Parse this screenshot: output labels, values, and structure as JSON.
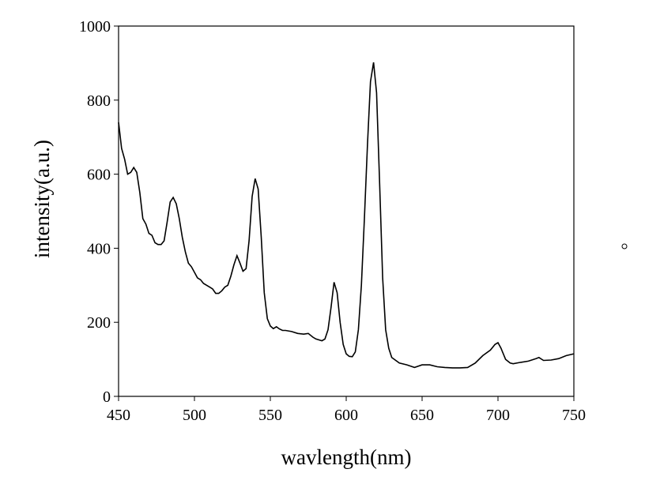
{
  "chart_data": {
    "type": "line",
    "x_label": "wavlength(nm)",
    "y_label": "intensity(a.u.)",
    "xlim": [
      450,
      750
    ],
    "ylim": [
      0,
      1000
    ],
    "xticks": [
      450,
      500,
      550,
      600,
      650,
      700,
      750
    ],
    "yticks": [
      0,
      200,
      400,
      600,
      800,
      1000
    ],
    "series": [
      {
        "color": "#000000",
        "x": [
          450,
          452,
          454,
          456,
          458,
          460,
          462,
          464,
          466,
          468,
          470,
          472,
          474,
          476,
          478,
          480,
          482,
          484,
          486,
          488,
          490,
          492,
          494,
          496,
          498,
          500,
          502,
          504,
          506,
          508,
          510,
          512,
          514,
          516,
          518,
          520,
          522,
          524,
          526,
          528,
          530,
          532,
          534,
          536,
          538,
          540,
          542,
          544,
          546,
          548,
          550,
          552,
          554,
          556,
          558,
          560,
          564,
          568,
          572,
          575,
          578,
          580,
          584,
          586,
          588,
          590,
          592,
          594,
          596,
          598,
          600,
          602,
          604,
          606,
          608,
          610,
          612,
          614,
          616,
          618,
          620,
          622,
          624,
          626,
          628,
          630,
          635,
          640,
          645,
          650,
          655,
          660,
          665,
          670,
          675,
          680,
          685,
          690,
          695,
          698,
          700,
          702,
          705,
          708,
          710,
          715,
          720,
          725,
          727,
          730,
          735,
          740,
          745,
          750
        ],
        "values": [
          740,
          670,
          640,
          600,
          605,
          618,
          605,
          550,
          480,
          465,
          440,
          435,
          415,
          410,
          410,
          420,
          470,
          525,
          537,
          520,
          480,
          430,
          390,
          360,
          350,
          335,
          320,
          315,
          305,
          300,
          295,
          290,
          278,
          278,
          285,
          295,
          300,
          325,
          355,
          380,
          360,
          338,
          345,
          420,
          540,
          588,
          560,
          430,
          280,
          210,
          190,
          183,
          188,
          182,
          178,
          178,
          175,
          170,
          168,
          170,
          160,
          155,
          150,
          155,
          180,
          240,
          308,
          280,
          200,
          140,
          115,
          108,
          107,
          120,
          180,
          300,
          480,
          680,
          850,
          902,
          820,
          580,
          320,
          180,
          130,
          105,
          90,
          85,
          78,
          85,
          85,
          80,
          78,
          77,
          77,
          78,
          90,
          110,
          125,
          140,
          145,
          130,
          100,
          90,
          88,
          92,
          95,
          102,
          105,
          97,
          98,
          102,
          110,
          115
        ]
      }
    ]
  }
}
